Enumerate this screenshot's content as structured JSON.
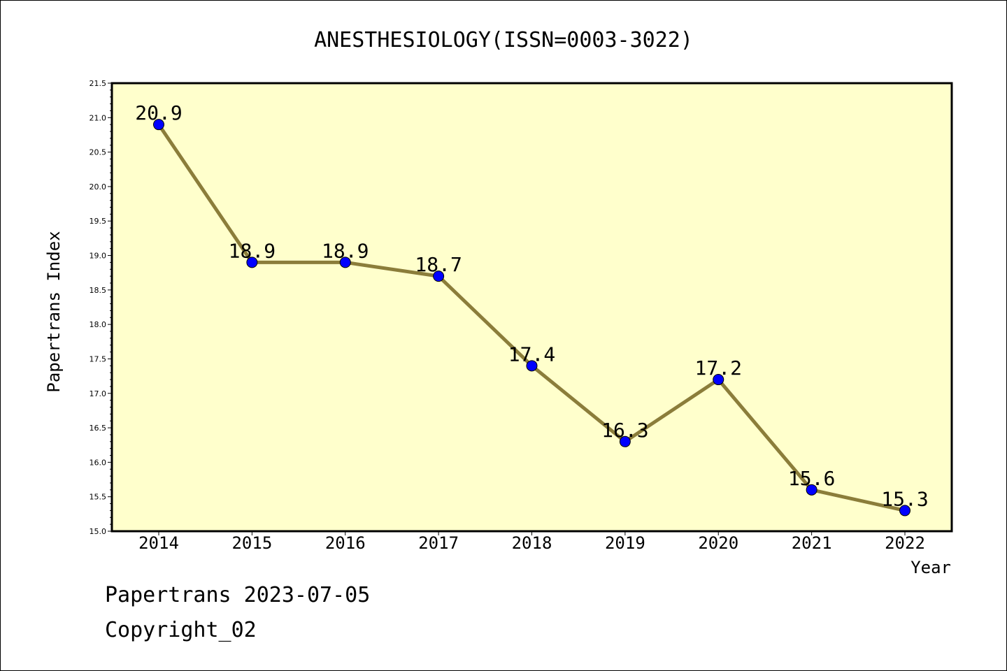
{
  "chart_data": {
    "type": "line",
    "title": "ANESTHESIOLOGY(ISSN=0003-3022)",
    "xlabel": "Year",
    "ylabel": "Papertrans Index",
    "categories": [
      "2014",
      "2015",
      "2016",
      "2017",
      "2018",
      "2019",
      "2020",
      "2021",
      "2022"
    ],
    "series": [
      {
        "values": [
          20.9,
          18.9,
          18.9,
          18.7,
          17.4,
          16.3,
          17.2,
          15.6,
          15.3
        ],
        "data_labels": [
          "20.9",
          "18.9",
          "18.9",
          "18.7",
          "17.4",
          "16.3",
          "17.2",
          "15.6",
          "15.3"
        ]
      }
    ],
    "ylim": [
      15.0,
      21.5
    ],
    "yticks": [
      "15.0",
      "15.5",
      "16.0",
      "16.5",
      "17.0",
      "17.5",
      "18.0",
      "18.5",
      "19.0",
      "19.5",
      "20.0",
      "20.5",
      "21.0",
      "21.5"
    ],
    "grid": false,
    "legend": "none",
    "colors": {
      "plot_background": "#ffffcc",
      "line": "#8b7d3a",
      "marker": "#0000ff",
      "frame": "#000000"
    }
  },
  "footer": {
    "date_line": "Papertrans 2023-07-05",
    "copyright": "Copyright_02"
  }
}
